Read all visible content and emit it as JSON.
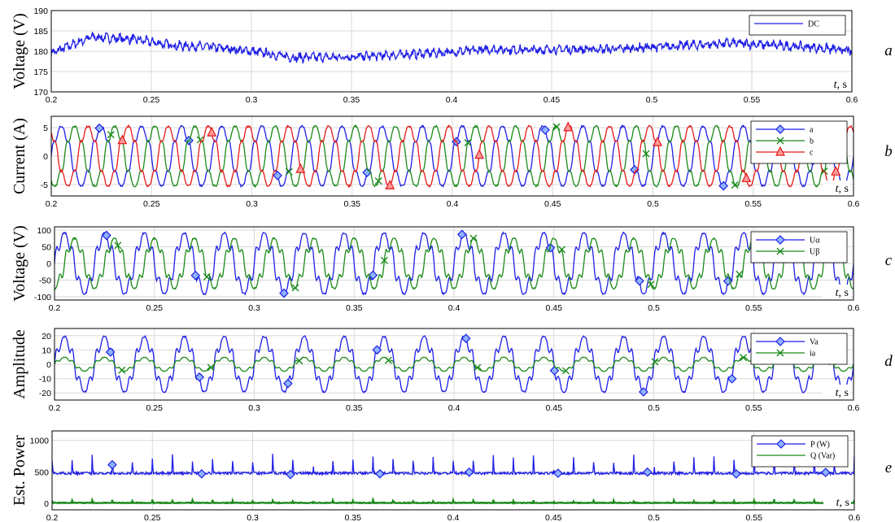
{
  "colors": {
    "blue": "#1f1fe6",
    "green": "#1a8a1a",
    "red": "#e61a1a",
    "grid": "#d9d9d9",
    "legend_box_fill": "#7fa7e6"
  },
  "chart_data": [
    {
      "panel": "a",
      "type": "line",
      "ylabel": "Voltage (V)",
      "xlabel": "t, s",
      "xlim": [
        0.2,
        0.6
      ],
      "ylim": [
        170,
        190
      ],
      "xticks": [
        "0.2",
        "0.25",
        "0.3",
        "0.35",
        "0.4",
        "0.45",
        "0.5",
        "0.55",
        "0.6"
      ],
      "yticks": [
        "170",
        "175",
        "180",
        "185",
        "190"
      ],
      "grid": true,
      "legend_position": "top-right",
      "series": [
        {
          "name": "DC",
          "color": "#1f1fe6",
          "marker": "none",
          "x": [
            0.2,
            0.22,
            0.24,
            0.26,
            0.28,
            0.3,
            0.32,
            0.34,
            0.36,
            0.38,
            0.4,
            0.42,
            0.44,
            0.46,
            0.48,
            0.5,
            0.52,
            0.54,
            0.56,
            0.58,
            0.6
          ],
          "y": [
            179.5,
            183.5,
            183,
            181.5,
            181,
            180,
            178.5,
            178.5,
            178.8,
            179.3,
            179.8,
            180.5,
            180.3,
            180.5,
            180.5,
            181,
            181.5,
            182,
            181.5,
            181,
            180
          ]
        }
      ]
    },
    {
      "panel": "b",
      "type": "line",
      "ylabel": "Current (A)",
      "xlabel": "t, s",
      "xlim": [
        0.2,
        0.6
      ],
      "ylim": [
        -7,
        7
      ],
      "xticks": [
        "0.2",
        "0.25",
        "0.3",
        "0.35",
        "0.4",
        "0.45",
        "0.5",
        "0.55",
        "0.6"
      ],
      "yticks": [
        "-5",
        "0",
        "5"
      ],
      "grid": true,
      "legend_position": "top-right",
      "series": [
        {
          "name": "a",
          "color": "#1f1fe6",
          "marker": "diamond",
          "amplitude": 5,
          "frequency_hz": 50,
          "phase_deg": 0
        },
        {
          "name": "b",
          "color": "#1a8a1a",
          "marker": "x",
          "amplitude": 5,
          "frequency_hz": 50,
          "phase_deg": -120
        },
        {
          "name": "c",
          "color": "#e61a1a",
          "marker": "triangle",
          "amplitude": 5,
          "frequency_hz": 50,
          "phase_deg": 120
        }
      ]
    },
    {
      "panel": "c",
      "type": "line",
      "ylabel": "Voltage (V)",
      "xlabel": "t, s",
      "xlim": [
        0.2,
        0.6
      ],
      "ylim": [
        -110,
        110
      ],
      "xticks": [
        "0.2",
        "0.25",
        "0.3",
        "0.35",
        "0.4",
        "0.45",
        "0.5",
        "0.55",
        "0.6"
      ],
      "yticks": [
        "-100",
        "-50",
        "0",
        "50",
        "100"
      ],
      "grid": true,
      "legend_position": "top-right",
      "series": [
        {
          "name": "Uα",
          "color": "#1f1fe6",
          "marker": "diamond",
          "amplitude": 85,
          "frequency_hz": 50,
          "phase_deg": 0
        },
        {
          "name": "Uβ",
          "color": "#1a8a1a",
          "marker": "x",
          "amplitude": 70,
          "frequency_hz": 50,
          "phase_deg": -90
        }
      ]
    },
    {
      "panel": "d",
      "type": "line",
      "ylabel": "Amplitude",
      "xlabel": "t, s",
      "xlim": [
        0.2,
        0.6
      ],
      "ylim": [
        -25,
        25
      ],
      "xticks": [
        "0.2",
        "0.25",
        "0.3",
        "0.35",
        "0.4",
        "0.45",
        "0.5",
        "0.55",
        "0.6"
      ],
      "yticks": [
        "-20",
        "-10",
        "0",
        "10",
        "20"
      ],
      "grid": true,
      "legend_position": "top-right",
      "series": [
        {
          "name": "Va",
          "color": "#1f1fe6",
          "marker": "diamond",
          "amplitude": 18,
          "frequency_hz": 50,
          "phase_deg": 0
        },
        {
          "name": "ia",
          "color": "#1a8a1a",
          "marker": "x",
          "amplitude": 4.5,
          "frequency_hz": 50,
          "phase_deg": 0
        }
      ]
    },
    {
      "panel": "e",
      "type": "line",
      "ylabel": "Est. Power",
      "xlabel": "t, s",
      "xlim": [
        0.2,
        0.6
      ],
      "ylim": [
        -100,
        1150
      ],
      "xticks": [
        "0.2",
        "0.25",
        "0.3",
        "0.35",
        "0.4",
        "0.45",
        "0.5",
        "0.55",
        "0.6"
      ],
      "yticks": [
        "0",
        "500",
        "1000"
      ],
      "grid": true,
      "legend_position": "top-right",
      "series": [
        {
          "name": "P (W)",
          "color": "#1f1fe6",
          "marker": "diamond",
          "mean": 480,
          "spike_peak": 780
        },
        {
          "name": "Q (Var)",
          "color": "#1a8a1a",
          "marker": "none",
          "mean": 10,
          "spike_peak": 60
        }
      ]
    }
  ]
}
